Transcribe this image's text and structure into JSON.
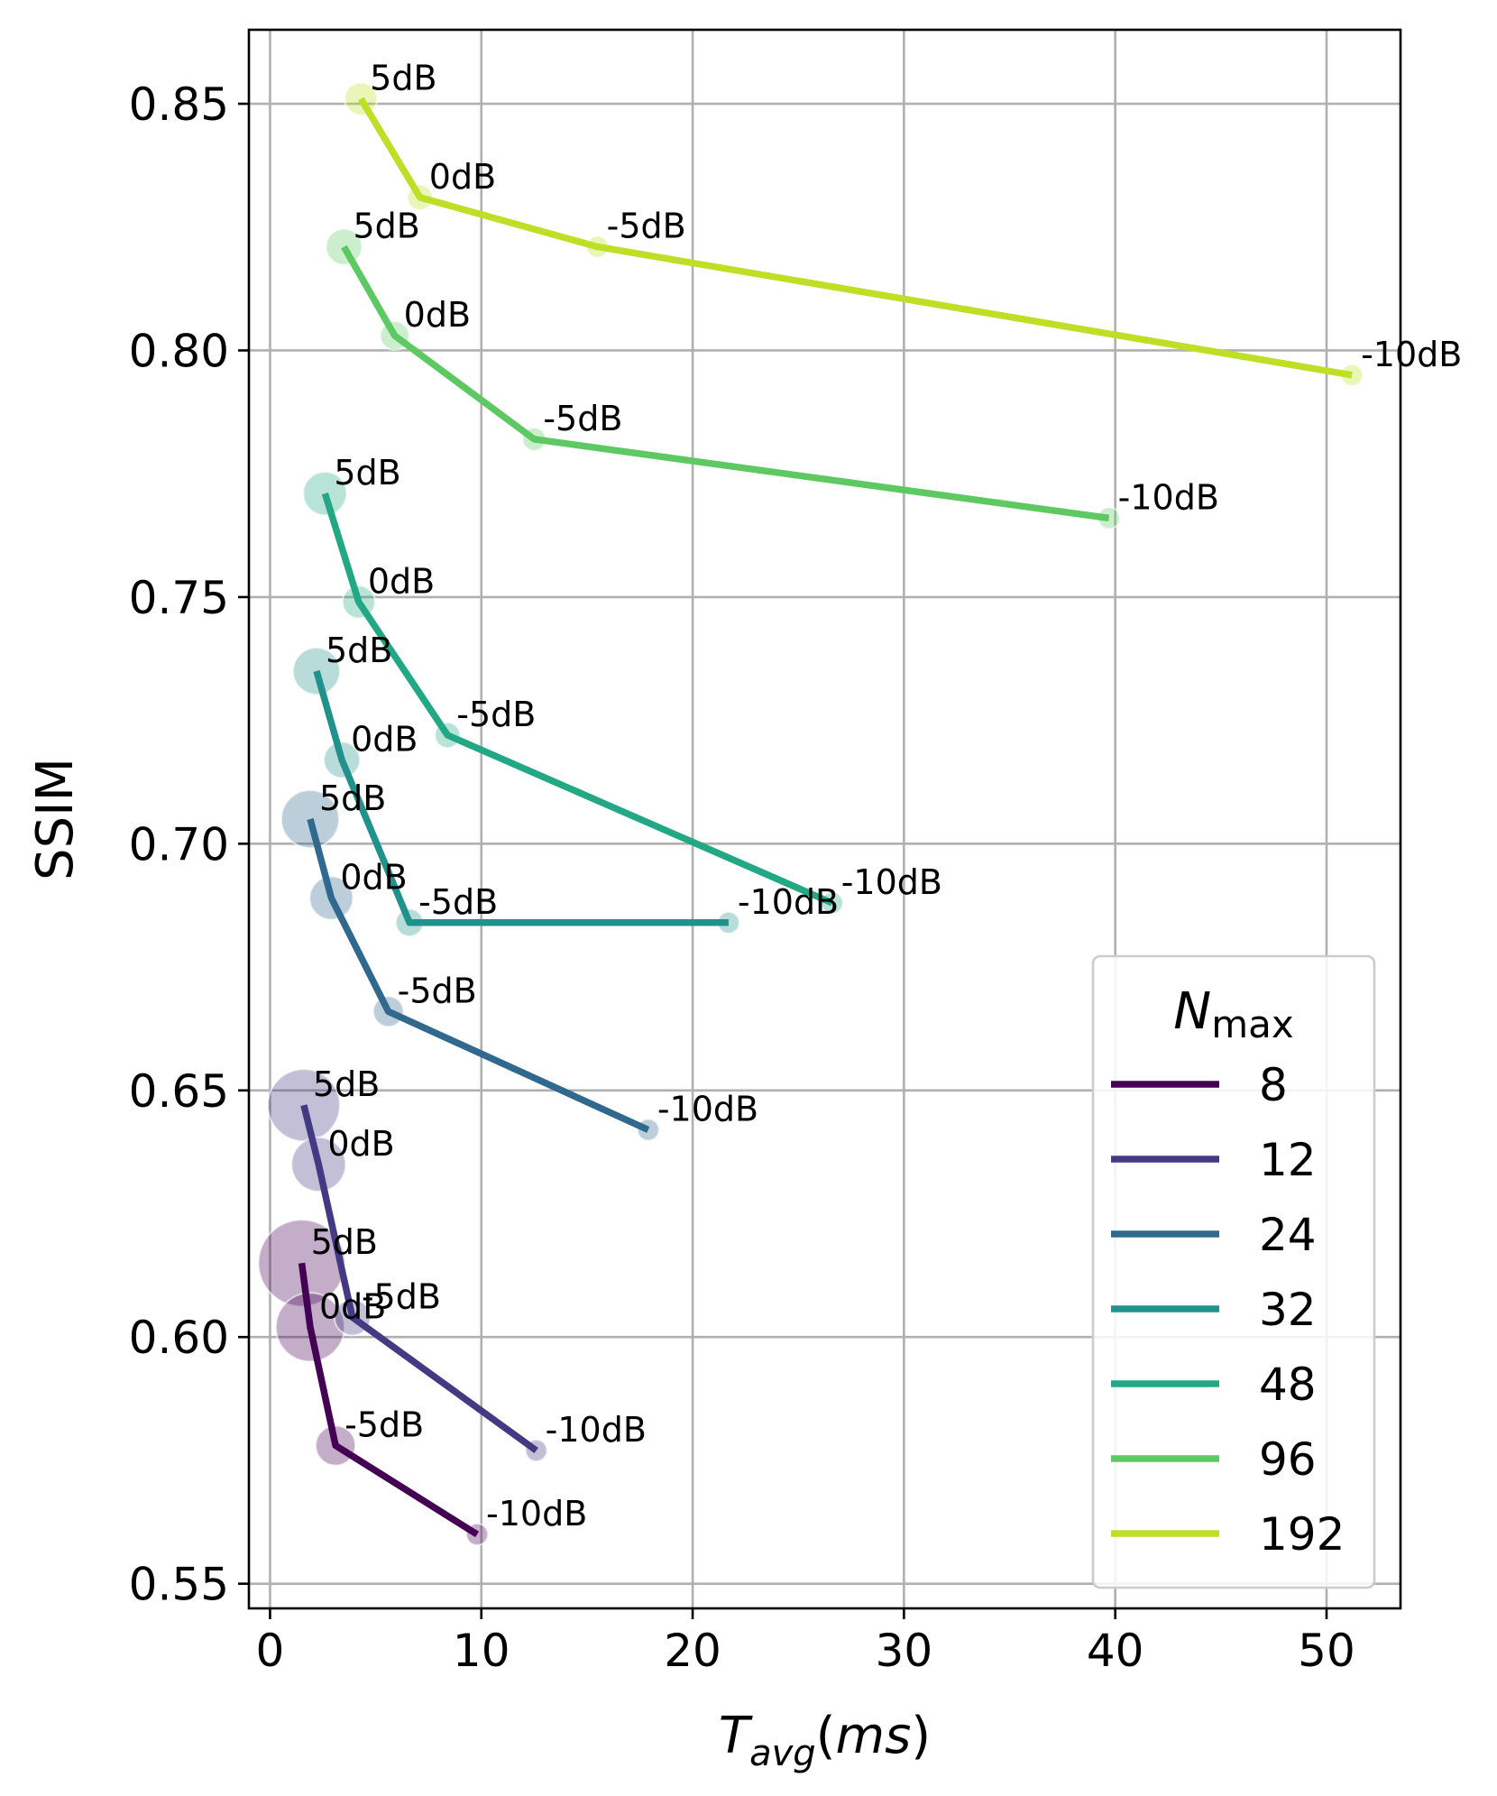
{
  "chart_data": {
    "type": "line",
    "xlabel": "T_avg(ms)",
    "ylabel": "SSIM",
    "xlim": [
      -1,
      53.5
    ],
    "ylim": [
      0.545,
      0.865
    ],
    "xticks": [
      0,
      10,
      20,
      30,
      40,
      50
    ],
    "yticks": [
      0.55,
      0.6,
      0.65,
      0.7,
      0.75,
      0.8,
      0.85
    ],
    "grid": true,
    "legend": {
      "title": "N_max",
      "placement": "lower-right"
    },
    "series": [
      {
        "name": "8",
        "color": "#440154",
        "points": [
          {
            "label": "5dB",
            "x": 1.5,
            "y": 0.615,
            "size": 1.0
          },
          {
            "label": "0dB",
            "x": 1.9,
            "y": 0.602,
            "size": 0.75
          },
          {
            "label": "-5dB",
            "x": 3.1,
            "y": 0.578,
            "size": 0.35
          },
          {
            "label": "-10dB",
            "x": 9.8,
            "y": 0.56,
            "size": 0.1
          }
        ]
      },
      {
        "name": "12",
        "color": "#443983",
        "points": [
          {
            "label": "5dB",
            "x": 1.6,
            "y": 0.647,
            "size": 0.8
          },
          {
            "label": "0dB",
            "x": 2.3,
            "y": 0.635,
            "size": 0.55
          },
          {
            "label": "-5dB",
            "x": 3.9,
            "y": 0.604,
            "size": 0.3
          },
          {
            "label": "-10dB",
            "x": 12.6,
            "y": 0.577,
            "size": 0.1
          }
        ]
      },
      {
        "name": "24",
        "color": "#31688e",
        "points": [
          {
            "label": "5dB",
            "x": 1.9,
            "y": 0.705,
            "size": 0.6
          },
          {
            "label": "0dB",
            "x": 2.9,
            "y": 0.689,
            "size": 0.4
          },
          {
            "label": "-5dB",
            "x": 5.6,
            "y": 0.666,
            "size": 0.22
          },
          {
            "label": "-10dB",
            "x": 17.9,
            "y": 0.642,
            "size": 0.1
          }
        ]
      },
      {
        "name": "32",
        "color": "#21918c",
        "points": [
          {
            "label": "5dB",
            "x": 2.2,
            "y": 0.735,
            "size": 0.45
          },
          {
            "label": "0dB",
            "x": 3.4,
            "y": 0.717,
            "size": 0.3
          },
          {
            "label": "-5dB",
            "x": 6.6,
            "y": 0.684,
            "size": 0.18
          },
          {
            "label": "-10dB",
            "x": 21.7,
            "y": 0.684,
            "size": 0.1
          }
        ]
      },
      {
        "name": "48",
        "color": "#22a884",
        "points": [
          {
            "label": "5dB",
            "x": 2.6,
            "y": 0.771,
            "size": 0.4
          },
          {
            "label": "0dB",
            "x": 4.2,
            "y": 0.749,
            "size": 0.25
          },
          {
            "label": "-5dB",
            "x": 8.4,
            "y": 0.722,
            "size": 0.15
          },
          {
            "label": "-10dB",
            "x": 26.6,
            "y": 0.688,
            "size": 0.1
          }
        ]
      },
      {
        "name": "96",
        "color": "#5ec962",
        "points": [
          {
            "label": "5dB",
            "x": 3.5,
            "y": 0.821,
            "size": 0.3
          },
          {
            "label": "0dB",
            "x": 5.9,
            "y": 0.803,
            "size": 0.2
          },
          {
            "label": "-5dB",
            "x": 12.5,
            "y": 0.782,
            "size": 0.12
          },
          {
            "label": "-10dB",
            "x": 39.7,
            "y": 0.766,
            "size": 0.1
          }
        ]
      },
      {
        "name": "192",
        "color": "#bddf26",
        "points": [
          {
            "label": "5dB",
            "x": 4.3,
            "y": 0.851,
            "size": 0.25
          },
          {
            "label": "0dB",
            "x": 7.1,
            "y": 0.831,
            "size": 0.15
          },
          {
            "label": "-5dB",
            "x": 15.5,
            "y": 0.821,
            "size": 0.1
          },
          {
            "label": "-10dB",
            "x": 51.2,
            "y": 0.795,
            "size": 0.1
          }
        ]
      }
    ]
  }
}
